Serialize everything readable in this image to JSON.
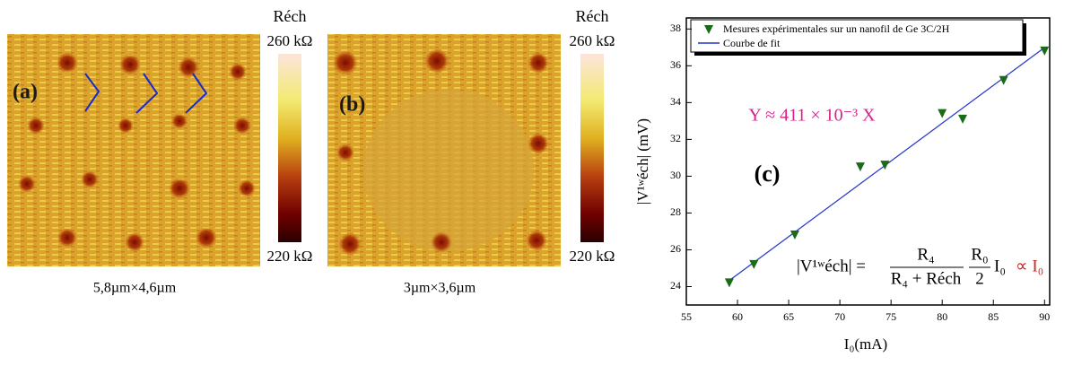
{
  "panels": [
    {
      "label": "(a)",
      "scale_title": "Réch",
      "scale_max": "260 kΩ",
      "scale_min": "220 kΩ",
      "caption": "5,8µm×4,6µm"
    },
    {
      "label": "(b)",
      "scale_title": "Réch",
      "scale_max": "260 kΩ",
      "scale_min": "220 kΩ",
      "caption": "3µm×3,6µm"
    }
  ],
  "chart_data": {
    "type": "scatter",
    "panel_label": "(c)",
    "x_label": "I₀(mA)",
    "y_label": "|V¹ʷéch| (mV)",
    "xlim": [
      55,
      90.5
    ],
    "ylim": [
      23,
      38.6
    ],
    "xticks": [
      55,
      60,
      65,
      70,
      75,
      80,
      85,
      90
    ],
    "yticks": [
      24,
      26,
      28,
      30,
      32,
      34,
      36,
      38
    ],
    "series": [
      {
        "name": "Mesures expérimentales sur un nanofil de Ge 3C/2H",
        "color": "#1a6b1a",
        "x": [
          59.2,
          61.6,
          65.6,
          72,
          74.4,
          80,
          82,
          86,
          90
        ],
        "values": [
          24.2,
          25.2,
          26.8,
          30.5,
          30.6,
          33.4,
          33.1,
          35.2,
          36.8
        ]
      },
      {
        "name": "Courbe de fit",
        "color": "#2233cc",
        "x": [
          59,
          90
        ],
        "values": [
          24.25,
          36.99
        ]
      }
    ],
    "fit_annotation": "Y ≈ 411 × 10⁻³ X",
    "formula": {
      "lhs": "|V¹ʷéch| =",
      "num": "R₄",
      "den": "R₄ + Réch",
      "num2": "R₀",
      "den2": "2",
      "i": "I₀",
      "prop": "∝ I₀"
    }
  }
}
